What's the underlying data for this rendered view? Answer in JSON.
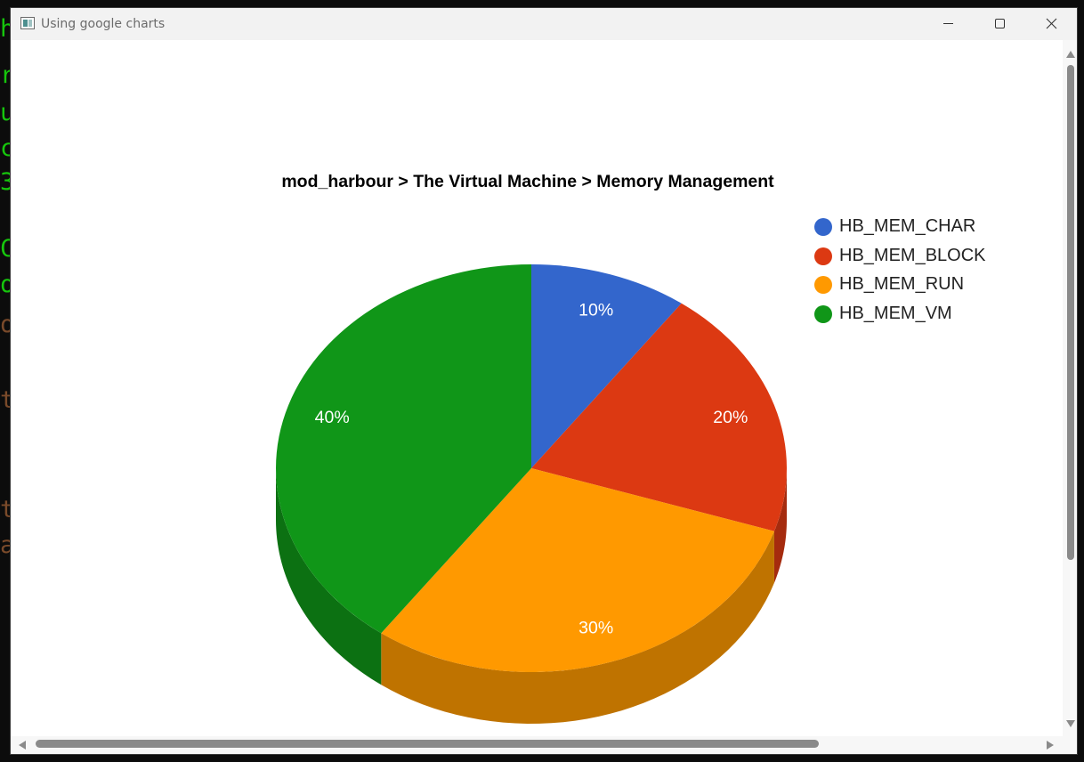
{
  "window": {
    "title": "Using google charts"
  },
  "chart_data": {
    "type": "pie",
    "is3D": true,
    "title": "mod_harbour > The Virtual Machine > Memory Management",
    "categories": [
      "HB_MEM_CHAR",
      "HB_MEM_BLOCK",
      "HB_MEM_RUN",
      "HB_MEM_VM"
    ],
    "values": [
      10,
      20,
      30,
      40
    ],
    "labels": [
      "10%",
      "20%",
      "30%",
      "40%"
    ],
    "colors": [
      "#3366cc",
      "#dc3912",
      "#ff9900",
      "#109618"
    ],
    "side_colors": [
      "#264d99",
      "#a52b0e",
      "#bf7300",
      "#0c7112"
    ],
    "legend_position": "right"
  }
}
